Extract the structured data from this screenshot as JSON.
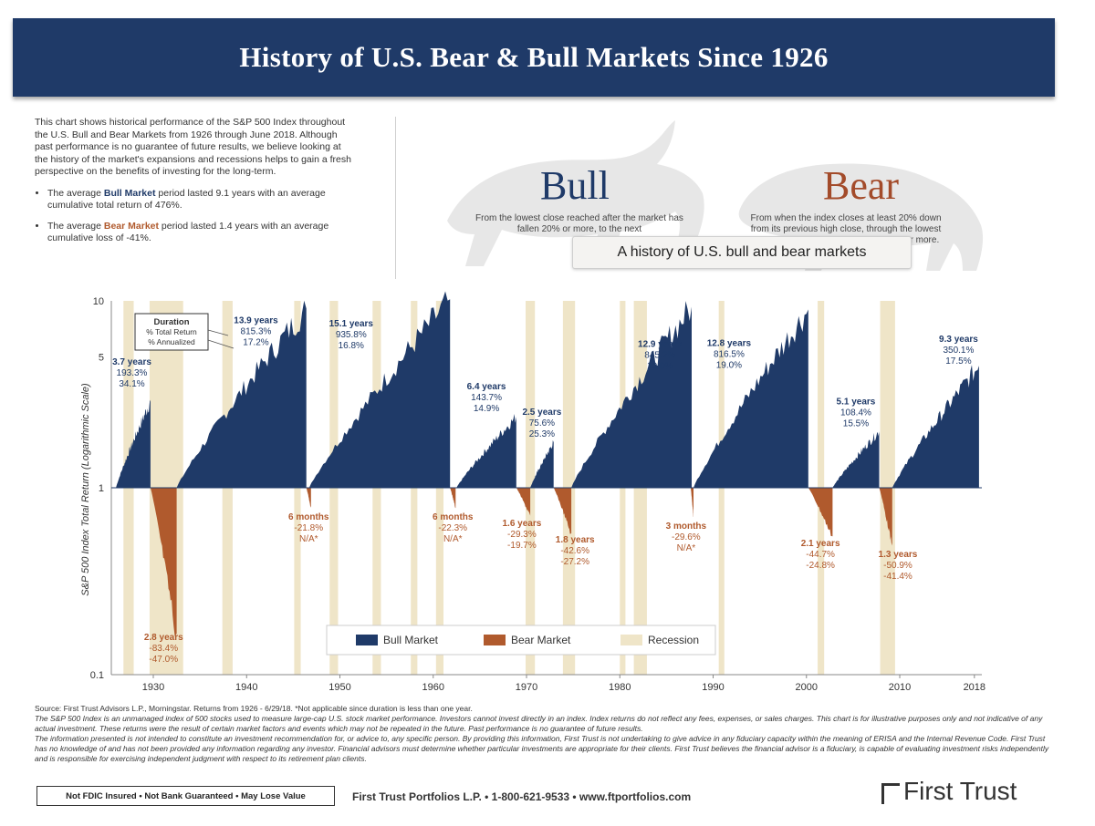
{
  "header": {
    "title": "History of U.S. Bear & Bull Markets Since 1926"
  },
  "intro": {
    "paragraph": "This chart shows historical performance of the S&P 500 Index throughout the U.S. Bull and Bear Markets from 1926 through June 2018. Although past performance is no guarantee of future results, we believe looking at the history of the market's expansions and recessions helps to gain a fresh perspective on the benefits of investing for the long-term.",
    "bullet1_pre": "The average ",
    "bullet1_key": "Bull Market",
    "bullet1_post": " period lasted 9.1 years with an average cumulative total return of 476%.",
    "bullet2_pre": "The average ",
    "bullet2_key": "Bear Market",
    "bullet2_post": " period lasted 1.4 years with an average cumulative loss of -41%."
  },
  "bull": {
    "title": "Bull",
    "desc": "From the lowest close reached after the market has fallen 20% or more, to the next"
  },
  "bear": {
    "title": "Bear",
    "desc": "From when the index closes at least 20% down from its previous high close, through the lowest"
  },
  "bear_desc_tail": "0% or more.",
  "tooltip": "A history of U.S. bull and bear markets",
  "chart_data": {
    "type": "area",
    "ylabel": "S&P 500 Index Total Return (Logarithmic Scale)",
    "yscale": "log",
    "ylim": [
      0.1,
      10
    ],
    "yticks": [
      "10",
      "5",
      "1",
      "0.1"
    ],
    "xlim": [
      1925.5,
      2018.8
    ],
    "xticks": [
      "1930",
      "1940",
      "1950",
      "1960",
      "1970",
      "1980",
      "1990",
      "2000",
      "2010",
      "2018"
    ],
    "legend": [
      "Bull Market",
      "Bear Market",
      "Recession"
    ],
    "legend_position": "bottom-center",
    "duration_key": [
      "Duration",
      "% Total Return",
      "% Annualized"
    ],
    "colors": {
      "bull": "#1f3a68",
      "bear": "#b05a2d",
      "recession": "#efe5c8"
    },
    "recessions": [
      [
        1926.8,
        1927.9
      ],
      [
        1929.6,
        1933.2
      ],
      [
        1937.4,
        1938.5
      ],
      [
        1945.1,
        1945.8
      ],
      [
        1948.9,
        1949.8
      ],
      [
        1953.5,
        1954.4
      ],
      [
        1957.6,
        1958.3
      ],
      [
        1960.3,
        1961.1
      ],
      [
        1969.9,
        1970.9
      ],
      [
        1973.9,
        1975.2
      ],
      [
        1980.0,
        1980.6
      ],
      [
        1981.5,
        1982.9
      ],
      [
        1990.6,
        1991.2
      ],
      [
        2001.2,
        2001.9
      ],
      [
        2007.9,
        2009.5
      ]
    ],
    "bull_markets": [
      {
        "start": 1926.0,
        "end": 1929.7,
        "peak": 2.9,
        "label": [
          "3.7 years",
          "193.3%",
          "34.1%"
        ]
      },
      {
        "start": 1932.5,
        "end": 1946.4,
        "peak": 9.1,
        "label": [
          "13.9 years",
          "815.3%",
          "17.2%"
        ]
      },
      {
        "start": 1946.7,
        "end": 1961.8,
        "peak": 10.2,
        "label": [
          "15.1 years",
          "935.8%",
          "16.8%"
        ]
      },
      {
        "start": 1962.5,
        "end": 1968.9,
        "peak": 2.4,
        "label": [
          "6.4 years",
          "143.7%",
          "14.9%"
        ]
      },
      {
        "start": 1970.4,
        "end": 1972.9,
        "peak": 1.75,
        "label": [
          "2.5 years",
          "75.6%",
          "25.3%"
        ]
      },
      {
        "start": 1974.8,
        "end": 1987.7,
        "peak": 9.3,
        "label": [
          "12.9 years",
          "845.2%",
          "19.0%"
        ]
      },
      {
        "start": 1987.9,
        "end": 2000.2,
        "peak": 9.0,
        "label": [
          "12.8 years",
          "816.5%",
          "19.0%"
        ]
      },
      {
        "start": 2002.8,
        "end": 2007.8,
        "peak": 2.0,
        "label": [
          "5.1 years",
          "108.4%",
          "15.5%"
        ]
      },
      {
        "start": 2009.2,
        "end": 2018.5,
        "peak": 4.5,
        "label": [
          "9.3 years",
          "350.1%",
          "17.5%"
        ]
      }
    ],
    "bear_markets": [
      {
        "start": 1929.7,
        "end": 1932.5,
        "trough": 0.166,
        "label": [
          "2.8 years",
          "-83.4%",
          "-47.0%"
        ]
      },
      {
        "start": 1946.4,
        "end": 1946.9,
        "trough": 0.78,
        "label": [
          "6 months",
          "-21.8%",
          "N/A*"
        ]
      },
      {
        "start": 1961.8,
        "end": 1962.4,
        "trough": 0.78,
        "label": [
          "6 months",
          "-22.3%",
          "N/A*"
        ]
      },
      {
        "start": 1968.9,
        "end": 1970.4,
        "trough": 0.71,
        "label": [
          "1.6 years",
          "-29.3%",
          "-19.7%"
        ]
      },
      {
        "start": 1972.9,
        "end": 1974.8,
        "trough": 0.57,
        "label": [
          "1.8 years",
          "-42.6%",
          "-27.2%"
        ]
      },
      {
        "start": 1987.6,
        "end": 1987.9,
        "trough": 0.7,
        "label": [
          "3 months",
          "-29.6%",
          "N/A*"
        ]
      },
      {
        "start": 2000.2,
        "end": 2002.8,
        "trough": 0.55,
        "label": [
          "2.1 years",
          "-44.7%",
          "-24.8%"
        ]
      },
      {
        "start": 2007.8,
        "end": 2009.2,
        "trough": 0.49,
        "label": [
          "1.3 years",
          "-50.9%",
          "-41.4%"
        ]
      }
    ]
  },
  "footer": {
    "source": "Source: First Trust Advisors L.P., Morningstar. Returns from 1926 - 6/29/18. *Not applicable since duration is less than one year.",
    "disclaimer1": "The S&P 500 Index is an unmanaged index of 500 stocks used to measure large-cap U.S. stock market performance. Investors cannot invest directly in an index. Index returns do not reflect any fees, expenses, or sales charges. This chart is for illustrative purposes only and not indicative of any actual investment. These returns were the result of certain market factors and events which may not be repeated in the future. Past performance is no guarantee of future results.",
    "disclaimer2": "The information presented is not intended to constitute an investment recommendation for, or advice to, any specific person. By providing this information, First Trust is not undertaking to give advice in any fiduciary capacity within the meaning of ERISA and the Internal Revenue Code. First Trust has no knowledge of and has not been provided any information regarding any investor. Financial advisors must determine whether particular investments are appropriate for their clients. First Trust believes the financial advisor is a fiduciary, is capable of evaluating investment risks independently and is responsible for exercising independent judgment with respect to its retirement plan clients.",
    "fdic": "Not FDIC Insured • Not Bank Guaranteed • May Lose Value",
    "contact": "First Trust Portfolios L.P. • 1-800-621-9533 • www.ftportfolios.com",
    "logo": "First Trust"
  }
}
